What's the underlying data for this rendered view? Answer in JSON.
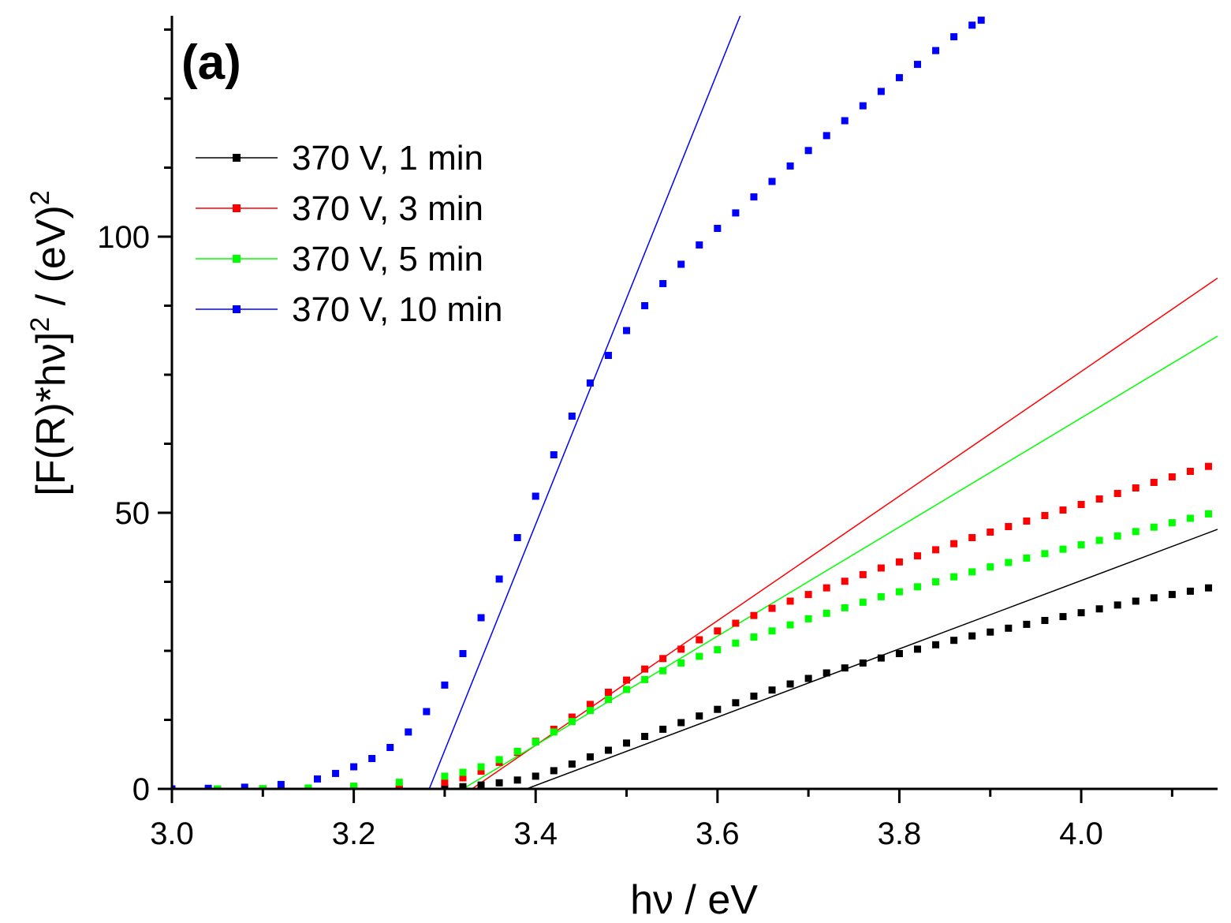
{
  "chart_data": {
    "type": "scatter",
    "panel_label": "(a)",
    "xlabel": "hν / eV",
    "ylabel_main": "[F(R)*hν]",
    "ylabel_sup1": "2",
    "ylabel_mid": " / (eV)",
    "ylabel_sup2": "2",
    "xlim": [
      3.0,
      4.15
    ],
    "ylim": [
      0,
      140
    ],
    "x_ticks": [
      3.0,
      3.2,
      3.4,
      3.6,
      3.8,
      4.0
    ],
    "x_tick_labels": [
      "3.0",
      "3.2",
      "3.4",
      "3.6",
      "3.8",
      "4.0"
    ],
    "y_ticks": [
      0,
      50,
      100
    ],
    "y_tick_labels": [
      "0",
      "50",
      "100"
    ],
    "legend_position": "top-left",
    "series": [
      {
        "name": "370 V, 1 min",
        "color": "#000000",
        "x": [
          3.0,
          3.05,
          3.1,
          3.15,
          3.2,
          3.25,
          3.3,
          3.32,
          3.34,
          3.36,
          3.38,
          3.4,
          3.42,
          3.44,
          3.46,
          3.48,
          3.5,
          3.52,
          3.54,
          3.56,
          3.58,
          3.6,
          3.62,
          3.64,
          3.66,
          3.68,
          3.7,
          3.72,
          3.74,
          3.76,
          3.78,
          3.8,
          3.82,
          3.84,
          3.86,
          3.88,
          3.9,
          3.92,
          3.94,
          3.96,
          3.98,
          4.0,
          4.02,
          4.04,
          4.06,
          4.08,
          4.1,
          4.12,
          4.14
        ],
        "y": [
          0,
          0,
          0,
          0,
          0,
          0.05,
          0.2,
          0.4,
          0.7,
          1.1,
          1.6,
          2.3,
          3.3,
          4.5,
          5.8,
          7.0,
          8.3,
          9.5,
          10.8,
          12.0,
          13.2,
          14.4,
          15.6,
          16.8,
          17.9,
          19.0,
          20.0,
          21.0,
          21.9,
          22.8,
          23.7,
          24.5,
          25.3,
          26.1,
          26.9,
          27.7,
          28.4,
          29.1,
          29.8,
          30.5,
          31.2,
          31.9,
          32.6,
          33.3,
          34.0,
          34.6,
          35.2,
          35.8,
          36.4
        ],
        "fit": {
          "x1": 3.39,
          "y1": 0,
          "x2": 4.15,
          "y2": 47
        }
      },
      {
        "name": "370 V, 3 min",
        "color": "#ff0000",
        "x": [
          3.0,
          3.05,
          3.1,
          3.15,
          3.2,
          3.25,
          3.3,
          3.32,
          3.34,
          3.36,
          3.38,
          3.4,
          3.42,
          3.44,
          3.46,
          3.48,
          3.5,
          3.52,
          3.54,
          3.56,
          3.58,
          3.6,
          3.62,
          3.64,
          3.66,
          3.68,
          3.7,
          3.72,
          3.74,
          3.76,
          3.78,
          3.8,
          3.82,
          3.84,
          3.86,
          3.88,
          3.9,
          3.92,
          3.94,
          3.96,
          3.98,
          4.0,
          4.02,
          4.04,
          4.06,
          4.08,
          4.1,
          4.12,
          4.14
        ],
        "y": [
          0,
          0,
          0,
          0.05,
          0.15,
          0.5,
          1.2,
          2.0,
          3.2,
          4.8,
          6.6,
          8.6,
          10.8,
          13.0,
          15.3,
          17.5,
          19.7,
          21.7,
          23.6,
          25.3,
          27.0,
          28.6,
          30.0,
          31.4,
          32.7,
          34.0,
          35.2,
          36.4,
          37.6,
          38.8,
          40.0,
          41.1,
          42.2,
          43.3,
          44.4,
          45.5,
          46.5,
          47.5,
          48.5,
          49.5,
          50.5,
          51.5,
          52.5,
          53.5,
          54.5,
          55.5,
          56.5,
          57.5,
          58.4
        ],
        "fit": {
          "x1": 3.33,
          "y1": 0,
          "x2": 4.15,
          "y2": 92.5
        }
      },
      {
        "name": "370 V, 5 min",
        "color": "#00ff00",
        "x": [
          3.0,
          3.05,
          3.1,
          3.15,
          3.2,
          3.25,
          3.3,
          3.32,
          3.34,
          3.36,
          3.38,
          3.4,
          3.42,
          3.44,
          3.46,
          3.48,
          3.5,
          3.52,
          3.54,
          3.56,
          3.58,
          3.6,
          3.62,
          3.64,
          3.66,
          3.68,
          3.7,
          3.72,
          3.74,
          3.76,
          3.78,
          3.8,
          3.82,
          3.84,
          3.86,
          3.88,
          3.9,
          3.92,
          3.94,
          3.96,
          3.98,
          4.0,
          4.02,
          4.04,
          4.06,
          4.08,
          4.1,
          4.12,
          4.14
        ],
        "y": [
          0,
          0,
          0.05,
          0.15,
          0.5,
          1.2,
          2.3,
          3.0,
          4.0,
          5.3,
          6.8,
          8.5,
          10.3,
          12.2,
          14.2,
          16.2,
          18.0,
          19.8,
          21.4,
          22.8,
          24.0,
          25.2,
          26.4,
          27.5,
          28.6,
          29.7,
          30.8,
          31.8,
          32.8,
          33.8,
          34.8,
          35.7,
          36.6,
          37.5,
          38.4,
          39.3,
          40.2,
          41.0,
          41.8,
          42.6,
          43.4,
          44.2,
          45.0,
          45.8,
          46.6,
          47.4,
          48.2,
          49.0,
          49.8
        ],
        "fit": {
          "x1": 3.32,
          "y1": 0,
          "x2": 4.15,
          "y2": 82
        }
      },
      {
        "name": "370 V, 10 min",
        "color": "#0000ff",
        "x": [
          3.0,
          3.04,
          3.08,
          3.12,
          3.16,
          3.18,
          3.2,
          3.22,
          3.24,
          3.26,
          3.28,
          3.3,
          3.32,
          3.34,
          3.36,
          3.38,
          3.4,
          3.42,
          3.44,
          3.46,
          3.48,
          3.5,
          3.52,
          3.54,
          3.56,
          3.58,
          3.6,
          3.62,
          3.64,
          3.66,
          3.68,
          3.7,
          3.72,
          3.74,
          3.76,
          3.78,
          3.8,
          3.82,
          3.84,
          3.86,
          3.88,
          3.89
        ],
        "y": [
          0,
          0.1,
          0.3,
          0.8,
          1.8,
          2.8,
          4.0,
          5.5,
          7.5,
          10.3,
          14.0,
          18.8,
          24.5,
          31.0,
          38.0,
          45.5,
          53.0,
          60.5,
          67.5,
          73.5,
          78.5,
          83.0,
          87.5,
          91.5,
          95.0,
          98.5,
          101.5,
          104.3,
          107.2,
          110.0,
          112.8,
          115.6,
          118.3,
          121.0,
          123.7,
          126.3,
          128.8,
          131.2,
          133.7,
          136.2,
          138.3,
          139.2
        ],
        "fit": {
          "x1": 3.283,
          "y1": 0,
          "x2": 3.625,
          "y2": 140
        }
      }
    ]
  }
}
